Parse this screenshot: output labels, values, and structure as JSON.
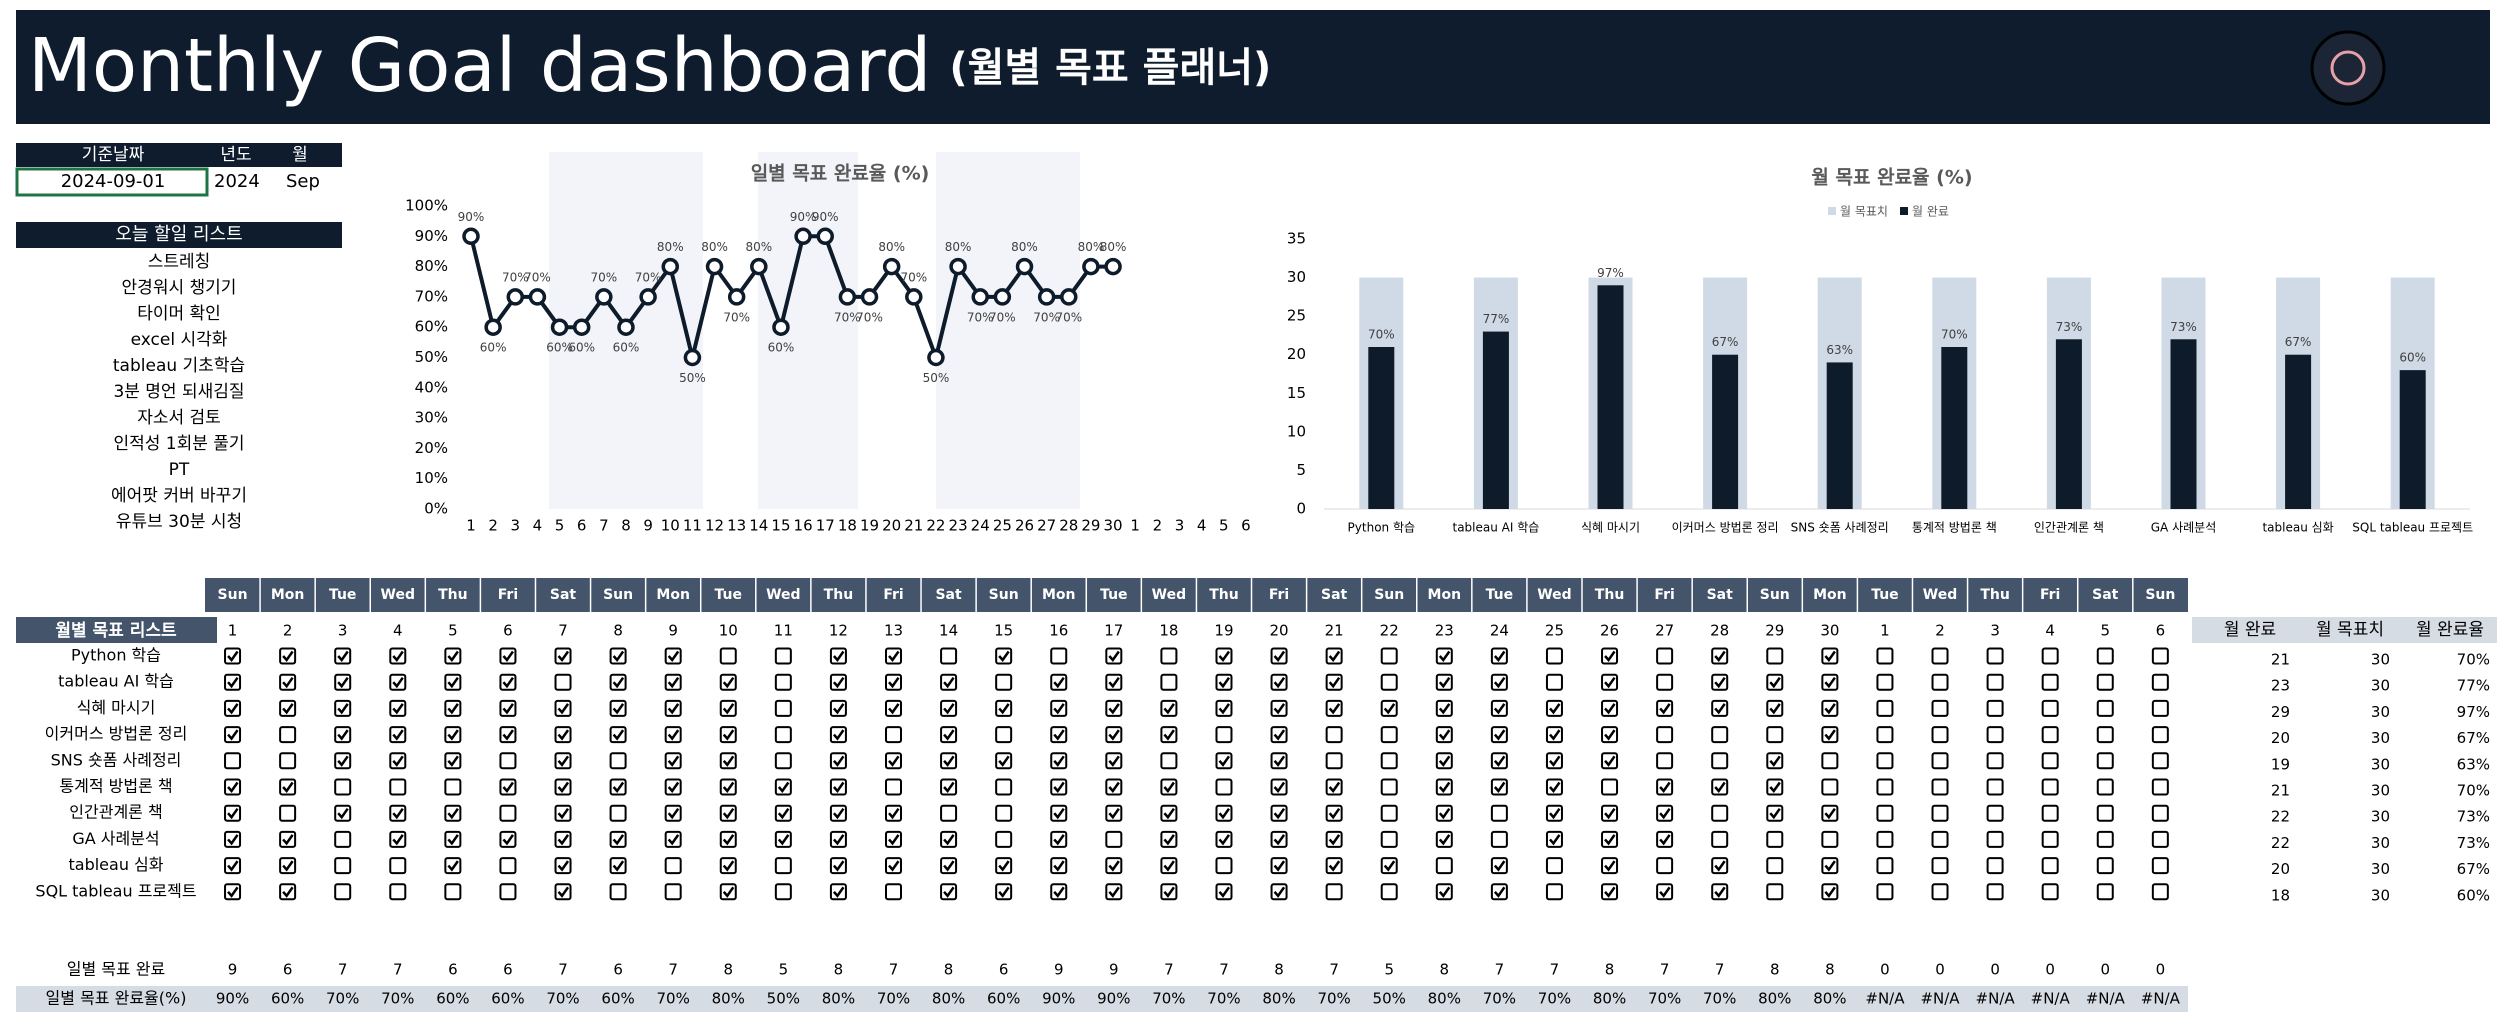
{
  "header": {
    "title": "Monthly Goal dashboard",
    "subtitle": "(월별 목표 플래너)"
  },
  "date_box": {
    "headers": [
      "기준날짜",
      "년도",
      "월"
    ],
    "values": [
      "2024-09-01",
      "2024",
      "Sep"
    ]
  },
  "todo": {
    "title": "오늘 할일 리스트",
    "items": [
      "스트레칭",
      "안경워시 챙기기",
      "타이머 확인",
      "excel 시각화",
      "tableau 기초학습",
      "3분 명언 되새김질",
      "자소서 검토",
      "인적성 1회분 풀기",
      "PT",
      "에어팟 커버 바꾸기",
      "유튜브 30분 시청"
    ]
  },
  "chart_data": [
    {
      "type": "line",
      "title": "일별 목표 완료율 (%)",
      "color": "#0d1b2a",
      "categories": [
        1,
        2,
        3,
        4,
        5,
        6,
        7,
        8,
        9,
        10,
        11,
        12,
        13,
        14,
        15,
        16,
        17,
        18,
        19,
        20,
        21,
        22,
        23,
        24,
        25,
        26,
        27,
        28,
        29,
        30,
        1,
        2,
        3,
        4,
        5,
        6
      ],
      "values": [
        90,
        60,
        70,
        70,
        60,
        60,
        70,
        60,
        70,
        80,
        50,
        80,
        70,
        80,
        60,
        90,
        90,
        70,
        70,
        80,
        70,
        50,
        80,
        70,
        70,
        80,
        70,
        70,
        80,
        80,
        null,
        null,
        null,
        null,
        null,
        null
      ],
      "value_labels": [
        "90%",
        "60%",
        "70%",
        "70%",
        "60%",
        "60%",
        "70%",
        "60%",
        "70%",
        "80%",
        "50%",
        "80%",
        "70%",
        "80%",
        "60%",
        "90%",
        "90%",
        "70%",
        "70%",
        "80%",
        "70%",
        "50%",
        "80%",
        "70%",
        "70%",
        "80%",
        "70%",
        "70%",
        "80%",
        "80%",
        null,
        null,
        null,
        null,
        null,
        null
      ],
      "ylim": [
        0,
        100
      ],
      "yticks": [
        {
          "value": 0,
          "label": "0%"
        },
        {
          "value": 10,
          "label": "10%"
        },
        {
          "value": 20,
          "label": "20%"
        },
        {
          "value": 30,
          "label": "30%"
        },
        {
          "value": 40,
          "label": "40%"
        },
        {
          "value": 50,
          "label": "50%"
        },
        {
          "value": 60,
          "label": "60%"
        },
        {
          "value": 70,
          "label": "70%"
        },
        {
          "value": 80,
          "label": "80%"
        },
        {
          "value": 90,
          "label": "90%"
        },
        {
          "value": 100,
          "label": "100%"
        }
      ]
    },
    {
      "type": "bar",
      "title": "월 목표 완료율 (%)",
      "categories": [
        "Python 학습",
        "tableau AI 학습",
        "식혜 마시기",
        "이커머스 방법론 정리",
        "SNS 숏폼 사례정리",
        "통계적 방법론 책",
        "인간관계론 책",
        "GA 사례분석",
        "tableau 심화",
        "SQL tableau 프로젝트"
      ],
      "series": [
        {
          "name": "월 목표치",
          "color": "#d0dae6",
          "values": [
            30,
            30,
            30,
            30,
            30,
            30,
            30,
            30,
            30,
            30
          ]
        },
        {
          "name": "월 완료",
          "color": "#0d1b2a",
          "values": [
            21,
            23,
            29,
            20,
            19,
            21,
            22,
            22,
            20,
            18
          ],
          "value_labels": [
            "70%",
            "77%",
            "97%",
            "67%",
            "63%",
            "70%",
            "73%",
            "73%",
            "67%",
            "60%"
          ]
        }
      ],
      "ylim": [
        0,
        35
      ],
      "yticks": [
        0,
        5,
        10,
        15,
        20,
        25,
        30,
        35
      ],
      "legend": "top"
    }
  ],
  "table": {
    "title": "월별 목표 리스트",
    "weekdays": [
      "Sun",
      "Mon",
      "Tue",
      "Wed",
      "Thu",
      "Fri",
      "Sat",
      "Sun",
      "Mon",
      "Tue",
      "Wed",
      "Thu",
      "Fri",
      "Sat",
      "Sun",
      "Mon",
      "Tue",
      "Wed",
      "Thu",
      "Fri",
      "Sat",
      "Sun",
      "Mon",
      "Tue",
      "Wed",
      "Thu",
      "Fri",
      "Sat",
      "Sun",
      "Mon",
      "Tue",
      "Wed",
      "Thu",
      "Fri",
      "Sat",
      "Sun"
    ],
    "days": [
      1,
      2,
      3,
      4,
      5,
      6,
      7,
      8,
      9,
      10,
      11,
      12,
      13,
      14,
      15,
      16,
      17,
      18,
      19,
      20,
      21,
      22,
      23,
      24,
      25,
      26,
      27,
      28,
      29,
      30,
      1,
      2,
      3,
      4,
      5,
      6
    ],
    "goals": [
      "Python 학습",
      "tableau AI 학습",
      "식혜 마시기",
      "이커머스 방법론 정리",
      "SNS 숏폼 사례정리",
      "통계적 방법론 책",
      "인간관계론 책",
      "GA 사례분석",
      "tableau 심화",
      "SQL tableau 프로젝트"
    ],
    "checks": [
      [
        true,
        true,
        true,
        true,
        true,
        true,
        true,
        true,
        true,
        false,
        false,
        true,
        true,
        false,
        true,
        false,
        true,
        false,
        true,
        true,
        true,
        false,
        true,
        true,
        false,
        true,
        false,
        true,
        false,
        true,
        false,
        false,
        false,
        false,
        false,
        false
      ],
      [
        true,
        true,
        true,
        true,
        true,
        true,
        false,
        true,
        true,
        true,
        false,
        true,
        true,
        true,
        false,
        true,
        true,
        false,
        true,
        true,
        true,
        false,
        true,
        true,
        false,
        true,
        false,
        true,
        true,
        true,
        false,
        false,
        false,
        false,
        false,
        false
      ],
      [
        true,
        true,
        true,
        true,
        true,
        true,
        true,
        true,
        true,
        true,
        false,
        true,
        true,
        true,
        true,
        true,
        true,
        true,
        true,
        true,
        true,
        true,
        true,
        true,
        true,
        true,
        true,
        true,
        true,
        true,
        false,
        false,
        false,
        false,
        false,
        false
      ],
      [
        true,
        false,
        true,
        true,
        true,
        true,
        true,
        true,
        true,
        true,
        false,
        true,
        false,
        true,
        false,
        true,
        true,
        true,
        false,
        true,
        false,
        false,
        true,
        true,
        true,
        true,
        false,
        false,
        false,
        true,
        false,
        false,
        false,
        false,
        false,
        false
      ],
      [
        false,
        false,
        true,
        true,
        true,
        false,
        true,
        false,
        true,
        true,
        false,
        true,
        true,
        true,
        true,
        true,
        true,
        false,
        true,
        true,
        false,
        false,
        true,
        true,
        true,
        true,
        false,
        false,
        true,
        false,
        false,
        false,
        false,
        false,
        false,
        false
      ],
      [
        true,
        true,
        false,
        false,
        false,
        true,
        true,
        true,
        true,
        true,
        true,
        true,
        false,
        true,
        false,
        true,
        true,
        true,
        false,
        true,
        true,
        false,
        true,
        true,
        true,
        false,
        true,
        true,
        true,
        false,
        false,
        false,
        false,
        false,
        false,
        false
      ],
      [
        true,
        false,
        true,
        true,
        true,
        false,
        true,
        false,
        true,
        true,
        true,
        true,
        true,
        false,
        false,
        true,
        true,
        true,
        true,
        true,
        true,
        false,
        true,
        false,
        true,
        true,
        true,
        false,
        true,
        true,
        false,
        false,
        false,
        false,
        false,
        false
      ],
      [
        true,
        true,
        false,
        true,
        true,
        true,
        true,
        true,
        true,
        true,
        true,
        true,
        true,
        true,
        false,
        true,
        false,
        true,
        true,
        true,
        true,
        false,
        true,
        false,
        true,
        true,
        true,
        false,
        false,
        false,
        false,
        false,
        false,
        false,
        false,
        false
      ],
      [
        true,
        true,
        false,
        false,
        true,
        false,
        true,
        true,
        false,
        true,
        false,
        true,
        true,
        true,
        true,
        true,
        true,
        true,
        false,
        true,
        true,
        true,
        false,
        true,
        false,
        true,
        false,
        true,
        false,
        true,
        false,
        false,
        false,
        false,
        false,
        false
      ],
      [
        true,
        true,
        false,
        false,
        false,
        false,
        true,
        false,
        false,
        true,
        false,
        true,
        false,
        true,
        true,
        true,
        true,
        true,
        true,
        true,
        false,
        false,
        true,
        true,
        false,
        true,
        true,
        true,
        false,
        true,
        false,
        false,
        false,
        false,
        false,
        false
      ]
    ],
    "summary_headers": [
      "월 완료",
      "월 목표치",
      "월 완료율"
    ],
    "summary": [
      [
        21,
        30,
        "70%"
      ],
      [
        23,
        30,
        "77%"
      ],
      [
        29,
        30,
        "97%"
      ],
      [
        20,
        30,
        "67%"
      ],
      [
        19,
        30,
        "63%"
      ],
      [
        21,
        30,
        "70%"
      ],
      [
        22,
        30,
        "73%"
      ],
      [
        22,
        30,
        "73%"
      ],
      [
        20,
        30,
        "67%"
      ],
      [
        18,
        30,
        "60%"
      ]
    ],
    "daily_done_label": "일별 목표 완료",
    "daily_done": [
      9,
      6,
      7,
      7,
      6,
      6,
      7,
      6,
      7,
      8,
      5,
      8,
      7,
      8,
      6,
      9,
      9,
      7,
      7,
      8,
      7,
      5,
      8,
      7,
      7,
      8,
      7,
      7,
      8,
      8,
      0,
      0,
      0,
      0,
      0,
      0
    ],
    "daily_rate_label": "일별 목표 완료율(%)",
    "daily_rate": [
      "90%",
      "60%",
      "70%",
      "70%",
      "60%",
      "60%",
      "70%",
      "60%",
      "70%",
      "80%",
      "50%",
      "80%",
      "70%",
      "80%",
      "60%",
      "90%",
      "90%",
      "70%",
      "70%",
      "80%",
      "70%",
      "50%",
      "80%",
      "70%",
      "70%",
      "80%",
      "70%",
      "70%",
      "80%",
      "80%",
      "#N/A",
      "#N/A",
      "#N/A",
      "#N/A",
      "#N/A",
      "#N/A"
    ]
  }
}
